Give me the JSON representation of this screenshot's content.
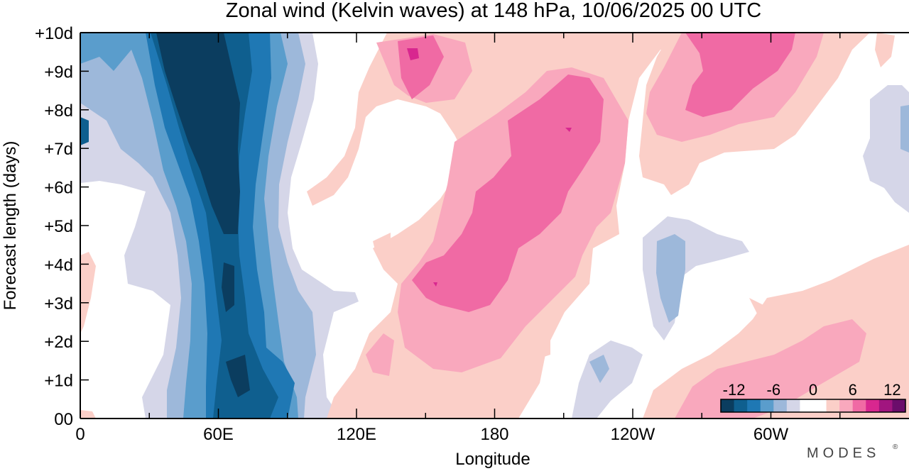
{
  "chart_data": {
    "type": "heatmap",
    "title": "Zonal wind (Kelvin waves) at 148 hPa,  10/06/2025  00 UTC",
    "xlabel": "Longitude",
    "ylabel": "Forecast length (days)",
    "x_ticks": [
      "0",
      "60E",
      "120E",
      "180",
      "120W",
      "60W"
    ],
    "x_tick_values": [
      0,
      60,
      120,
      180,
      240,
      300
    ],
    "xlim": [
      0,
      360
    ],
    "y_ticks": [
      "00",
      "+1d",
      "+2d",
      "+3d",
      "+4d",
      "+5d",
      "+6d",
      "+7d",
      "+8d",
      "+9d",
      "+10d"
    ],
    "y_tick_values": [
      0,
      1,
      2,
      3,
      4,
      5,
      6,
      7,
      8,
      9,
      10
    ],
    "ylim": [
      0,
      10
    ],
    "grid": false,
    "colorbar": {
      "labels": [
        "-12",
        "-6",
        "0",
        "6",
        "12"
      ],
      "label_values": [
        -12,
        -6,
        0,
        6,
        12
      ],
      "colors": [
        "#0b3d5f",
        "#0f5f8f",
        "#1f78b4",
        "#5a9dcc",
        "#9db8da",
        "#d5d6e8",
        "#ffffff",
        "#ffffff",
        "#fbcfc8",
        "#f9a8bd",
        "#f06aa4",
        "#d8278f",
        "#a1157f",
        "#6b0d6b"
      ],
      "placement": "bottom-right"
    },
    "features": [
      {
        "name": "negative band 60E",
        "min_value": -12,
        "longitude_range": [
          35,
          100
        ],
        "forecast_range": [
          0,
          10
        ]
      },
      {
        "name": "positive band 140E-180",
        "max_value": 10,
        "longitude_range": [
          130,
          230
        ],
        "forecast_range": [
          0,
          10
        ]
      },
      {
        "name": "positive band 90W-60W",
        "max_value": 10,
        "longitude_range": [
          250,
          310
        ],
        "forecast_range": [
          6,
          10
        ]
      },
      {
        "name": "weak negative 130W",
        "min_value": -4,
        "longitude_range": [
          245,
          285
        ],
        "forecast_range": [
          2,
          5
        ]
      }
    ]
  },
  "brand": "MODES",
  "brand_mark": "®"
}
